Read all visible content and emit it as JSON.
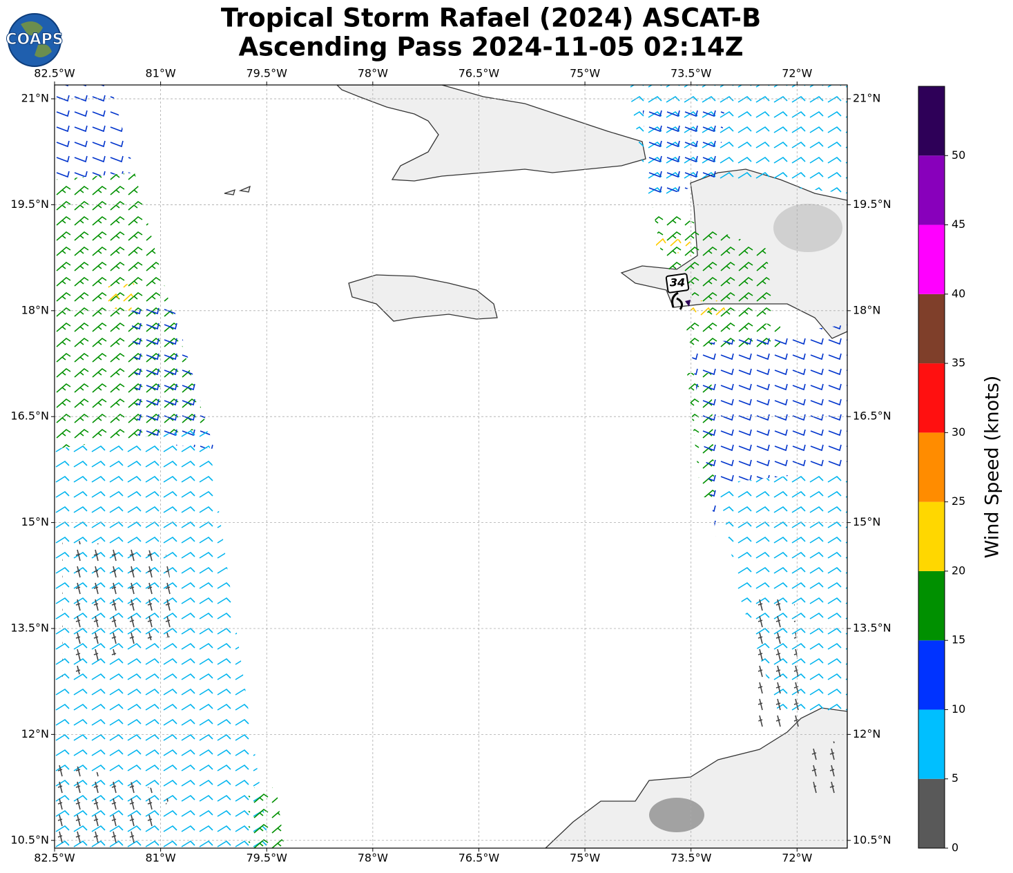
{
  "header": {
    "title": "Tropical Storm Rafael (2024) ASCAT-B",
    "subtitle": "Ascending Pass 2024-11-05 02:14Z",
    "logo_text": "COAPS"
  },
  "map": {
    "xlim": [
      -82.5,
      -71.29
    ],
    "ylim": [
      10.39,
      21.196
    ],
    "xticks": [
      {
        "value": -82.5,
        "label": "82.5°W"
      },
      {
        "value": -81,
        "label": "81°W"
      },
      {
        "value": -79.5,
        "label": "79.5°W"
      },
      {
        "value": -78,
        "label": "78°W"
      },
      {
        "value": -76.5,
        "label": "76.5°W"
      },
      {
        "value": -75,
        "label": "75°W"
      },
      {
        "value": -73.5,
        "label": "73.5°W"
      },
      {
        "value": -72,
        "label": "72°W"
      }
    ],
    "yticks": [
      {
        "value": 21,
        "label": "21°N"
      },
      {
        "value": 19.5,
        "label": "19.5°N"
      },
      {
        "value": 18,
        "label": "18°N"
      },
      {
        "value": 16.5,
        "label": "16.5°N"
      },
      {
        "value": 15,
        "label": "15°N"
      },
      {
        "value": 13.5,
        "label": "13.5°N"
      },
      {
        "value": 12,
        "label": "12°N"
      },
      {
        "value": 10.5,
        "label": "10.5°N"
      }
    ],
    "grid": true,
    "storm_label": "34"
  },
  "colorbar": {
    "label": "Wind Speed (knots)",
    "ylim": [
      0,
      55
    ],
    "yticks": [
      0,
      5,
      10,
      15,
      20,
      25,
      30,
      35,
      40,
      45,
      50
    ],
    "bins": [
      0,
      5,
      10,
      15,
      20,
      25,
      30,
      35,
      40,
      45,
      50,
      55
    ],
    "colors": [
      "#595959",
      "#00bfff",
      "#0033ff",
      "#009000",
      "#ffd700",
      "#ff8c00",
      "#ff1010",
      "#7f3f2a",
      "#ff00ff",
      "#8800bb",
      "#2e0058"
    ]
  }
}
